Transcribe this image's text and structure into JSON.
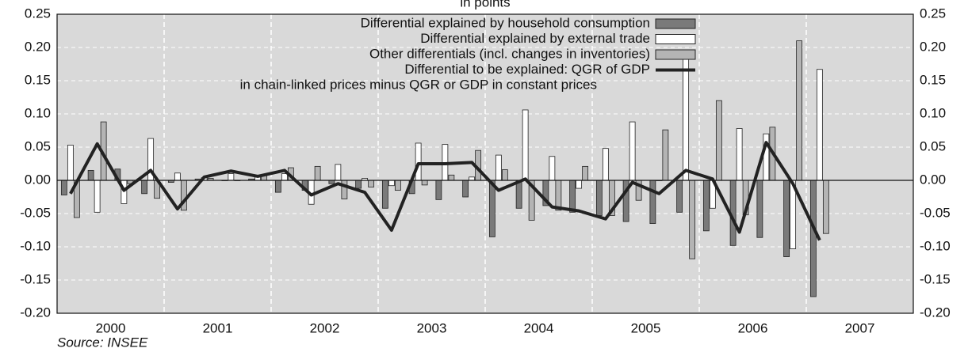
{
  "chart_data": {
    "type": "bar",
    "title": "in points",
    "source": "Source: INSEE",
    "categories": [
      null,
      null,
      null,
      null,
      null,
      null,
      null,
      null,
      null,
      null,
      null,
      null,
      null,
      null,
      null,
      null,
      null,
      null,
      null,
      null,
      null,
      null,
      null,
      null,
      null,
      null,
      null,
      null,
      null
    ],
    "year_labels": [
      "2000",
      "2001",
      "2002",
      "2003",
      "2004",
      "2005",
      "2006",
      "2007"
    ],
    "series": [
      {
        "name": "Differential explained by household consumption",
        "color": "#7a7a7a",
        "values": [
          -0.022,
          0.015,
          0.017,
          -0.02,
          -0.003,
          0.002,
          0.0,
          0.002,
          -0.018,
          -0.015,
          -0.005,
          -0.012,
          -0.042,
          -0.02,
          -0.029,
          -0.025,
          -0.085,
          -0.042,
          -0.038,
          -0.048,
          -0.053,
          -0.062,
          -0.065,
          -0.048,
          -0.076,
          -0.098,
          -0.086,
          -0.115,
          -0.175
        ]
      },
      {
        "name": "Differential explained by external trade",
        "color": "#ffffff",
        "values": [
          0.053,
          -0.048,
          -0.035,
          0.063,
          0.011,
          0.004,
          0.01,
          0.005,
          0.01,
          -0.036,
          0.024,
          0.003,
          -0.008,
          0.056,
          0.054,
          0.005,
          0.038,
          0.106,
          0.036,
          -0.012,
          0.048,
          0.088,
          0.0,
          0.184,
          -0.042,
          0.078,
          0.07,
          -0.103,
          0.167
        ]
      },
      {
        "name": "Other differentials (incl. changes in inventories)",
        "color": "#b4b4b4",
        "values": [
          -0.056,
          0.088,
          -0.005,
          -0.027,
          -0.045,
          0.003,
          0.0,
          0.008,
          0.019,
          0.021,
          -0.028,
          -0.01,
          -0.015,
          -0.007,
          0.008,
          0.045,
          0.016,
          -0.06,
          -0.045,
          0.021,
          -0.053,
          -0.03,
          0.076,
          -0.118,
          0.12,
          -0.052,
          0.08,
          0.21,
          -0.08
        ]
      },
      {
        "name": "Differential to be explained: QGR of GDP",
        "type": "line",
        "color": "#222222",
        "values": [
          -0.02,
          0.055,
          -0.015,
          0.015,
          -0.043,
          0.005,
          0.014,
          0.006,
          0.015,
          -0.022,
          -0.005,
          -0.018,
          -0.075,
          0.025,
          0.025,
          0.027,
          -0.015,
          0.002,
          -0.04,
          -0.046,
          -0.058,
          -0.003,
          -0.02,
          0.015,
          0.002,
          -0.078,
          0.057,
          -0.005,
          -0.09
        ]
      }
    ],
    "legend_note": "in chain-linked prices minus QGR or GDP in constant prices",
    "ylim": [
      -0.2,
      0.25
    ],
    "yticks": [
      0.25,
      {
        "value": 0.2,
        "label": "0.20"
      },
      0.15,
      {
        "value": 0.1,
        "label": "0.10"
      },
      0.05,
      {
        "value": 0,
        "label": "0.00"
      },
      -0.05,
      {
        "value": -0.1,
        "label": "-0.10"
      },
      -0.15,
      {
        "value": -0.2,
        "label": "-0.20"
      }
    ],
    "y2lim": [
      -0.2,
      0.25
    ],
    "y2ticks": [
      0.25,
      {
        "value": 0.2,
        "label": "0.20"
      },
      0.15,
      {
        "value": 0.1,
        "label": "0.10"
      },
      0.05,
      {
        "value": 0,
        "label": "0.00"
      },
      -0.05,
      {
        "value": -0.1,
        "label": "-0.10"
      },
      -0.15,
      {
        "value": -0.2,
        "label": "-0.20"
      }
    ],
    "grid": true
  }
}
